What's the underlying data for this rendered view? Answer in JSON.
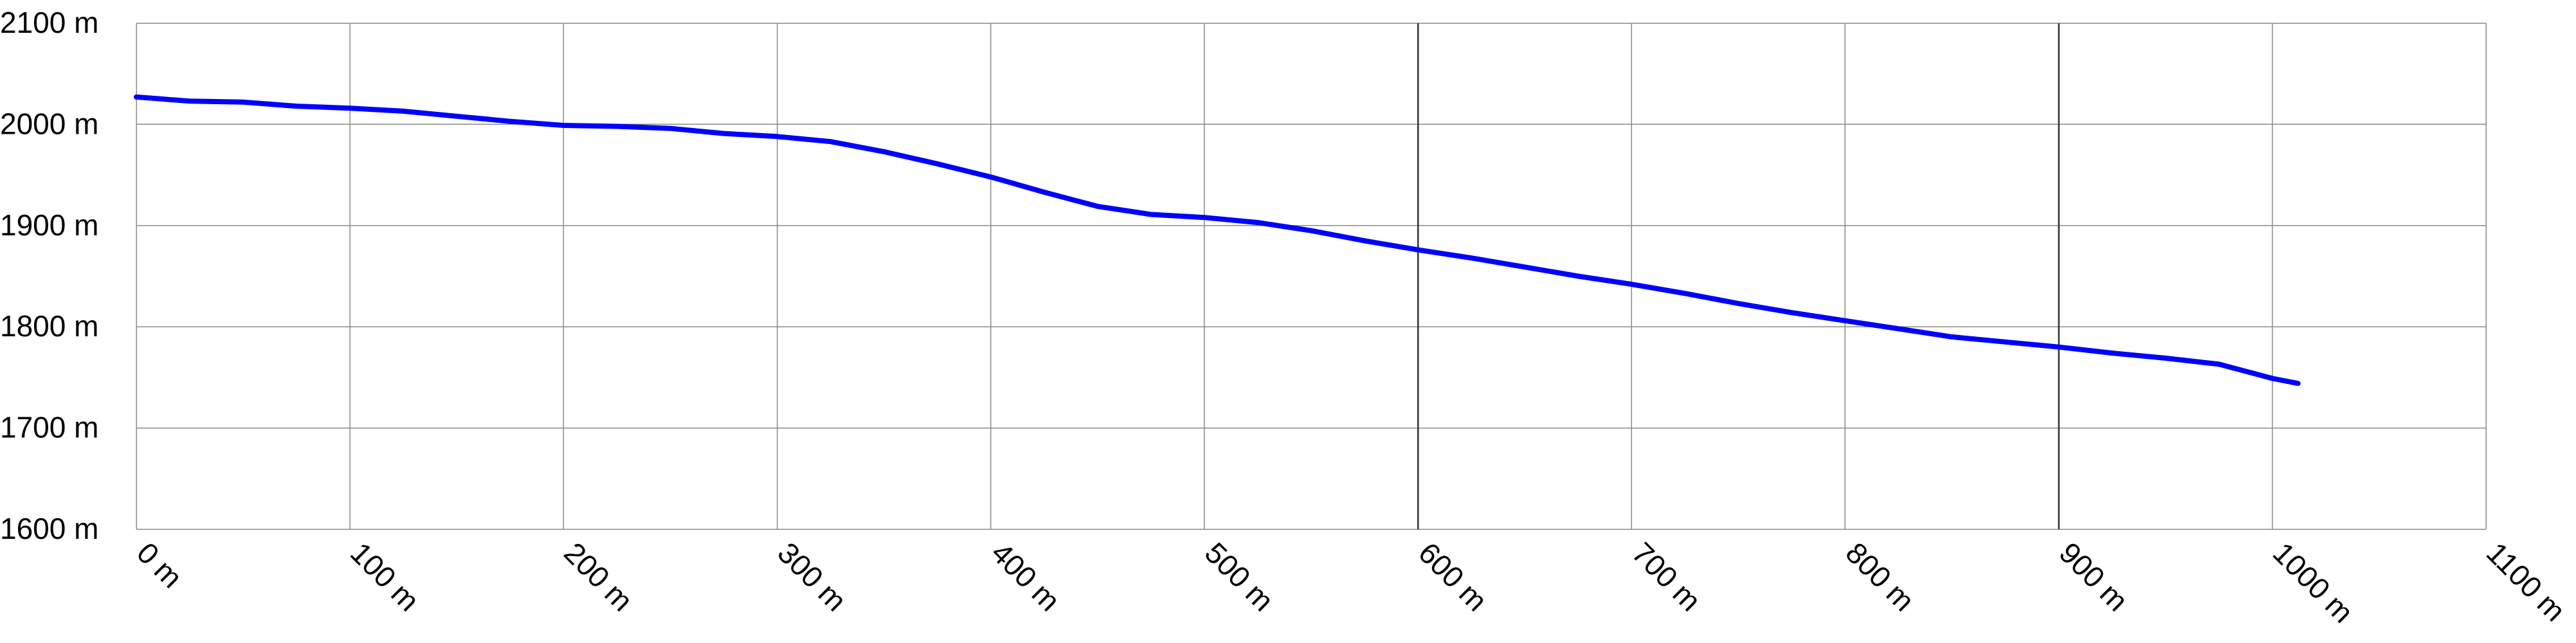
{
  "chart_data": {
    "type": "line",
    "title": "",
    "xlabel": "",
    "ylabel": "",
    "xlim": [
      0,
      1100
    ],
    "ylim": [
      1600,
      2100
    ],
    "x_ticks": [
      0,
      100,
      200,
      300,
      400,
      500,
      600,
      700,
      800,
      900,
      1000,
      1100
    ],
    "y_ticks": [
      1600,
      1700,
      1800,
      1900,
      2000,
      2100
    ],
    "x_tick_labels": [
      "0 m",
      "100 m",
      "200 m",
      "300 m",
      "400 m",
      "500 m",
      "600 m",
      "700 m",
      "800 m",
      "900 m",
      "1000 m",
      "1100 m"
    ],
    "y_tick_labels": [
      "1600 m",
      "1700 m",
      "1800 m",
      "1900 m",
      "2000 m",
      "2100 m"
    ],
    "emphasized_x_gridlines": [
      600,
      900
    ],
    "grid": true,
    "line_color": "#0000ff",
    "series": [
      {
        "x": [
          0,
          25,
          50,
          75,
          100,
          125,
          150,
          175,
          200,
          225,
          250,
          275,
          300,
          325,
          350,
          375,
          400,
          425,
          450,
          475,
          500,
          525,
          550,
          575,
          600,
          625,
          650,
          675,
          700,
          725,
          750,
          775,
          800,
          825,
          850,
          875,
          900,
          925,
          950,
          975,
          1000,
          1012
        ],
        "y": [
          2027,
          2023,
          2022,
          2018,
          2016,
          2013,
          2008,
          2003,
          1999,
          1998,
          1996,
          1991,
          1988,
          1983,
          1973,
          1961,
          1948,
          1933,
          1919,
          1911,
          1908,
          1903,
          1895,
          1885,
          1876,
          1868,
          1859,
          1850,
          1842,
          1833,
          1823,
          1814,
          1806,
          1798,
          1790,
          1785,
          1780,
          1774,
          1769,
          1763,
          1749,
          1744
        ]
      }
    ]
  }
}
